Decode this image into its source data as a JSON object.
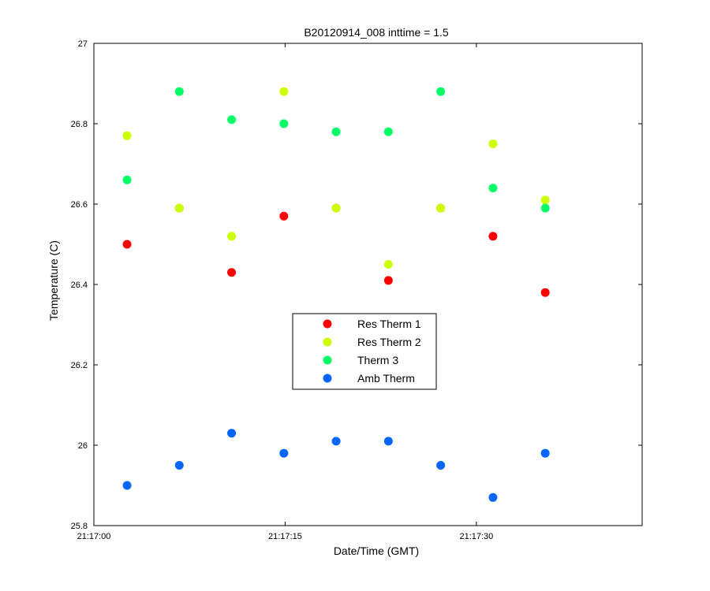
{
  "chart_data": {
    "type": "scatter",
    "title": "B20120914_008 inttime = 1.5",
    "xlabel": "Date/Time (GMT)",
    "ylabel": "Temperature (C)",
    "xlim": [
      "21:17:00",
      "21:17:43"
    ],
    "ylim": [
      25.8,
      27
    ],
    "xticks": [
      "21:17:00",
      "21:17:15",
      "21:17:30"
    ],
    "yticks": [
      "25.8",
      "26",
      "26.2",
      "26.4",
      "26.6",
      "26.8",
      "27"
    ],
    "grid": false,
    "legend_position": "center",
    "x": [
      "21:17:02.6",
      "21:17:06.7",
      "21:17:10.8",
      "21:17:14.9",
      "21:17:19.0",
      "21:17:23.1",
      "21:17:27.2",
      "21:17:31.3",
      "21:17:35.4"
    ],
    "series": [
      {
        "name": "Res Therm 1",
        "color": "#ff0000",
        "values": [
          26.5,
          26.59,
          26.43,
          26.57,
          26.59,
          26.41,
          26.59,
          26.52,
          26.38
        ]
      },
      {
        "name": "Res Therm 2",
        "color": "#ccff00",
        "values": [
          26.77,
          26.59,
          26.52,
          26.88,
          26.59,
          26.45,
          26.59,
          26.75,
          26.61
        ]
      },
      {
        "name": "Therm 3",
        "color": "#00ff66",
        "values": [
          26.66,
          26.88,
          26.81,
          26.8,
          26.78,
          26.78,
          26.88,
          26.64,
          26.59
        ]
      },
      {
        "name": "Amb Therm",
        "color": "#0066ff",
        "values": [
          25.9,
          25.95,
          26.03,
          25.98,
          26.01,
          26.01,
          25.95,
          25.87,
          25.98
        ]
      }
    ]
  }
}
